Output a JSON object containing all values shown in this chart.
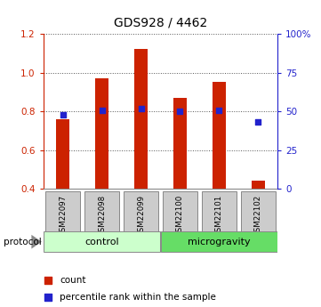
{
  "title": "GDS928 / 4462",
  "samples": [
    "GSM22097",
    "GSM22098",
    "GSM22099",
    "GSM22100",
    "GSM22101",
    "GSM22102"
  ],
  "bar_values": [
    0.76,
    0.97,
    1.12,
    0.87,
    0.95,
    0.44
  ],
  "percentile_values": [
    48,
    50.5,
    52,
    50,
    50.5,
    43
  ],
  "ylim_left": [
    0.4,
    1.2
  ],
  "ylim_right": [
    0,
    100
  ],
  "yticks_left": [
    0.4,
    0.6,
    0.8,
    1.0,
    1.2
  ],
  "yticks_right": [
    0,
    25,
    50,
    75,
    100
  ],
  "ytick_labels_right": [
    "0",
    "25",
    "50",
    "75",
    "100%"
  ],
  "bar_color": "#cc2200",
  "dot_color": "#2222cc",
  "bar_width": 0.35,
  "groups": [
    {
      "label": "control",
      "indices": [
        0,
        1,
        2
      ],
      "color": "#ccffcc"
    },
    {
      "label": "microgravity",
      "indices": [
        3,
        4,
        5
      ],
      "color": "#66dd66"
    }
  ],
  "protocol_label": "protocol",
  "legend_count": "count",
  "legend_pct": "percentile rank within the sample",
  "grid_color": "#555555",
  "axis_color_left": "#cc2200",
  "axis_color_right": "#2222cc",
  "sample_box_color": "#cccccc",
  "sample_box_edge": "#888888",
  "title_fontsize": 10,
  "tick_fontsize": 7.5,
  "sample_fontsize": 6.2,
  "group_fontsize": 8,
  "legend_fontsize": 7.5,
  "protocol_fontsize": 7.5
}
